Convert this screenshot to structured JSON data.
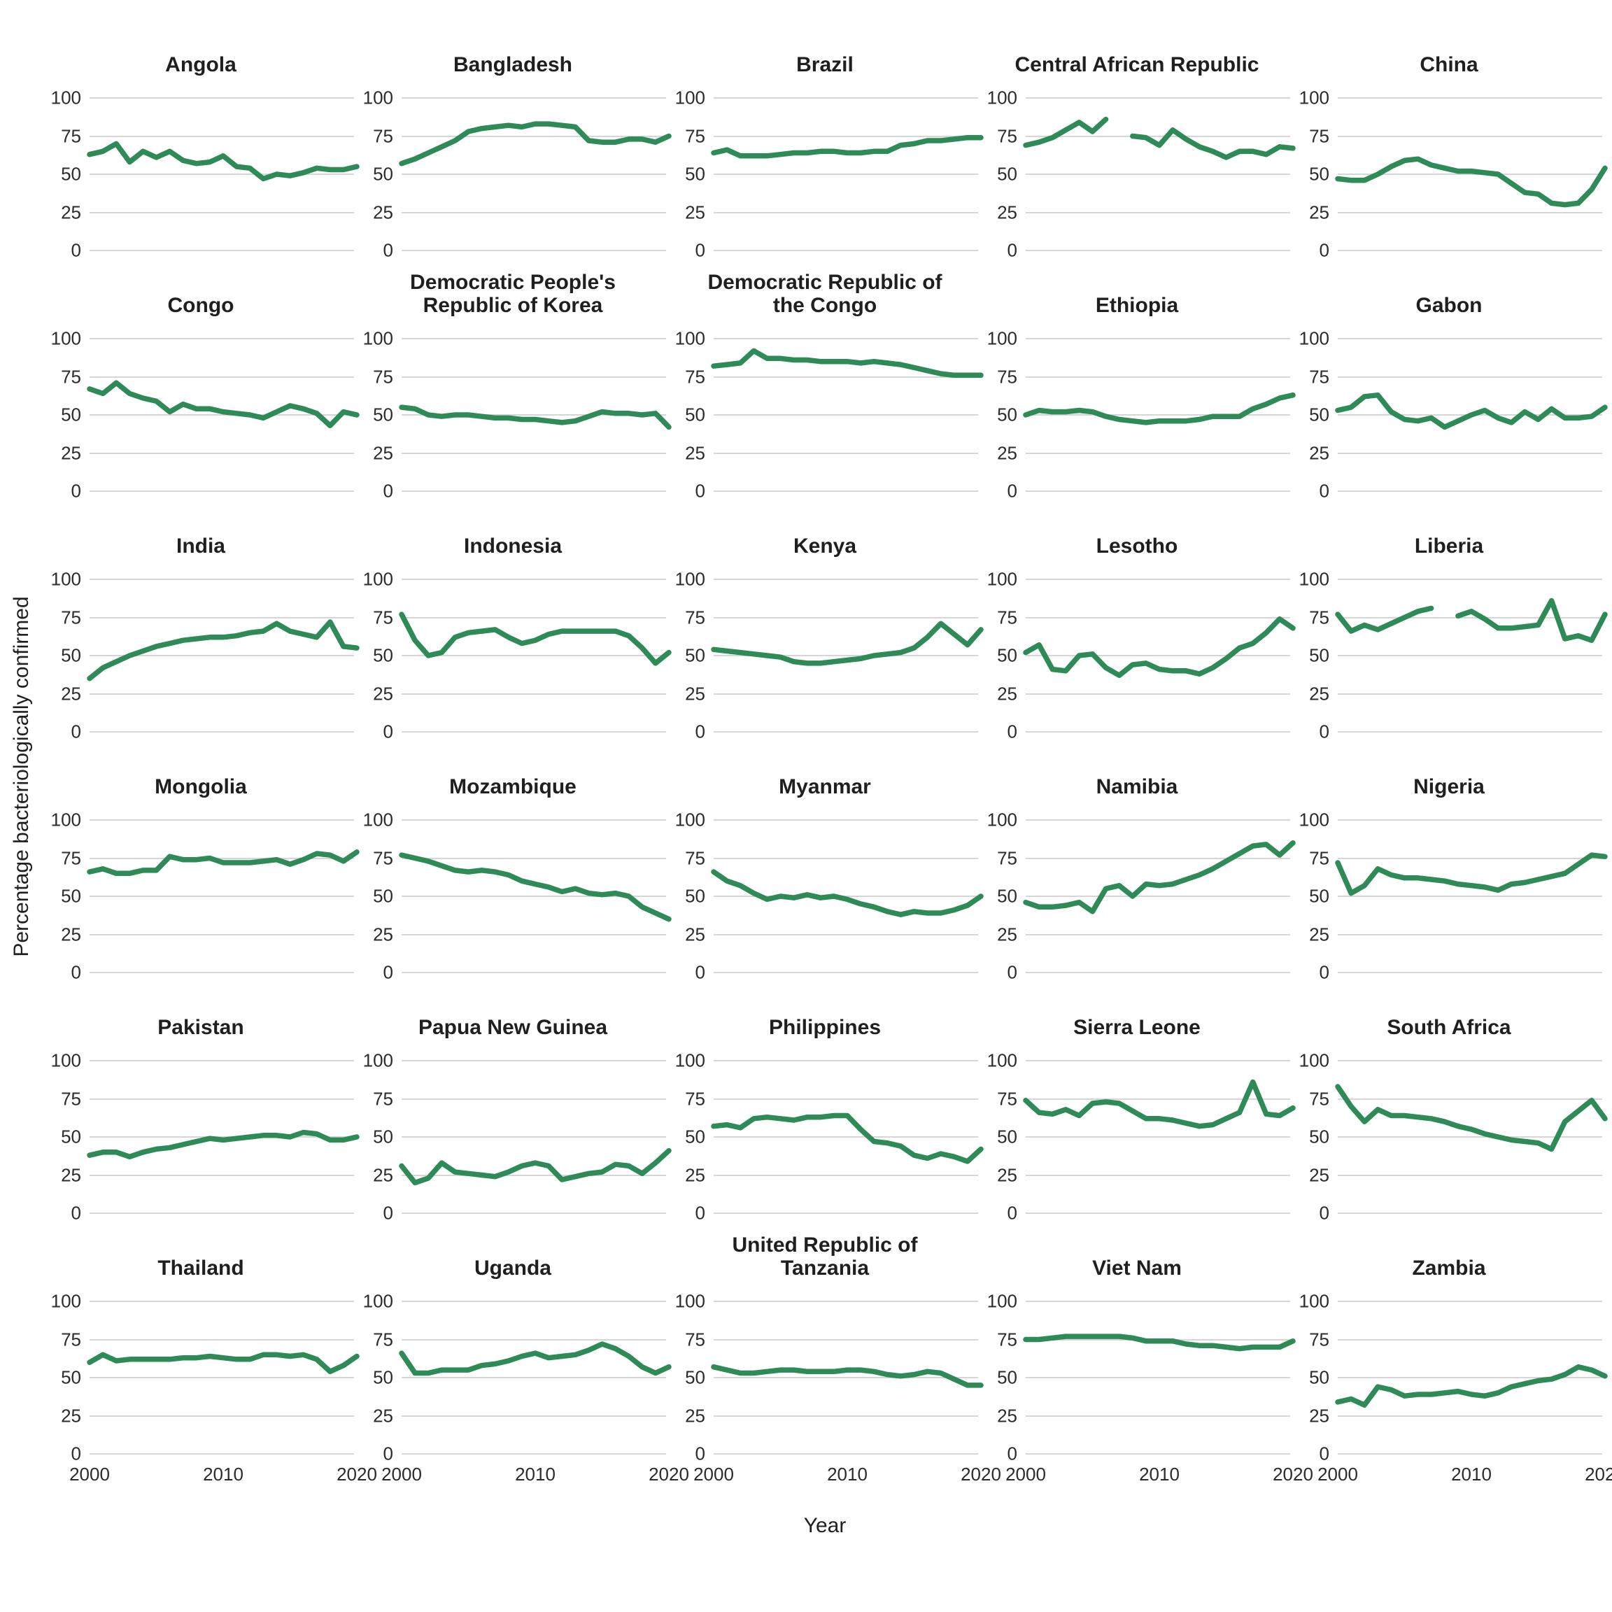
{
  "y_axis_label": "Percentage bacteriologically confirmed",
  "x_axis_label": "Year",
  "style": {
    "line_color": "#2e8b57",
    "grid_color": "#d6d6d6",
    "tick_label_color": "#2c2c2c",
    "title_color": "#1f1f1f",
    "background": "#ffffff"
  },
  "chart_data": {
    "type": "line",
    "title": "",
    "xlabel": "Year",
    "ylabel": "Percentage bacteriologically confirmed",
    "x": [
      2000,
      2001,
      2002,
      2003,
      2004,
      2005,
      2006,
      2007,
      2008,
      2009,
      2010,
      2011,
      2012,
      2013,
      2014,
      2015,
      2016,
      2017,
      2018,
      2019,
      2020
    ],
    "x_ticks": [
      2000,
      2010,
      2020
    ],
    "y_ticks": [
      0,
      25,
      50,
      75,
      100
    ],
    "y_range": [
      0,
      100
    ],
    "grid": "horizontal gridlines at y ticks only",
    "legend": "none",
    "layout": "facet grid 6 rows x 5 columns, x tick labels on bottom row only, y tick labels on every panel",
    "facets": [
      {
        "title": "Angola",
        "values": [
          63,
          65,
          70,
          58,
          65,
          61,
          65,
          59,
          57,
          58,
          62,
          55,
          54,
          47,
          50,
          49,
          51,
          54,
          53,
          53,
          55
        ]
      },
      {
        "title": "Bangladesh",
        "values": [
          57,
          60,
          64,
          68,
          72,
          78,
          80,
          81,
          82,
          81,
          83,
          83,
          82,
          81,
          72,
          71,
          71,
          73,
          73,
          71,
          75
        ]
      },
      {
        "title": "Brazil",
        "values": [
          64,
          66,
          62,
          62,
          62,
          63,
          64,
          64,
          65,
          65,
          64,
          64,
          65,
          65,
          69,
          70,
          72,
          72,
          73,
          74,
          74
        ]
      },
      {
        "title": "Central African\nRepublic",
        "values": [
          69,
          71,
          74,
          79,
          84,
          78,
          86,
          null,
          75,
          74,
          69,
          79,
          73,
          68,
          65,
          61,
          65,
          65,
          63,
          68,
          67
        ]
      },
      {
        "title": "China",
        "values": [
          47,
          46,
          46,
          50,
          55,
          59,
          60,
          56,
          54,
          52,
          52,
          51,
          50,
          44,
          38,
          37,
          31,
          30,
          31,
          40,
          54
        ]
      },
      {
        "title": "Congo",
        "values": [
          67,
          64,
          71,
          64,
          61,
          59,
          52,
          57,
          54,
          54,
          52,
          51,
          50,
          48,
          52,
          56,
          54,
          51,
          43,
          52,
          50
        ]
      },
      {
        "title": "Democratic People's\nRepublic of Korea",
        "values": [
          55,
          54,
          50,
          49,
          50,
          50,
          49,
          48,
          48,
          47,
          47,
          46,
          45,
          46,
          49,
          52,
          51,
          51,
          50,
          51,
          42
        ]
      },
      {
        "title": "Democratic Republic\nof the Congo",
        "values": [
          82,
          83,
          84,
          92,
          87,
          87,
          86,
          86,
          85,
          85,
          85,
          84,
          85,
          84,
          83,
          81,
          79,
          77,
          76,
          76,
          76
        ]
      },
      {
        "title": "Ethiopia",
        "values": [
          50,
          53,
          52,
          52,
          53,
          52,
          49,
          47,
          46,
          45,
          46,
          46,
          46,
          47,
          49,
          49,
          49,
          54,
          57,
          61,
          63
        ]
      },
      {
        "title": "Gabon",
        "values": [
          53,
          55,
          62,
          63,
          52,
          47,
          46,
          48,
          42,
          46,
          50,
          53,
          48,
          45,
          52,
          47,
          54,
          48,
          48,
          49,
          55
        ]
      },
      {
        "title": "India",
        "values": [
          35,
          42,
          46,
          50,
          53,
          56,
          58,
          60,
          61,
          62,
          62,
          63,
          65,
          66,
          71,
          66,
          64,
          62,
          72,
          56,
          55
        ]
      },
      {
        "title": "Indonesia",
        "values": [
          77,
          60,
          50,
          52,
          62,
          65,
          66,
          67,
          62,
          58,
          60,
          64,
          66,
          66,
          66,
          66,
          66,
          63,
          55,
          45,
          52
        ]
      },
      {
        "title": "Kenya",
        "values": [
          54,
          53,
          52,
          51,
          50,
          49,
          46,
          45,
          45,
          46,
          47,
          48,
          50,
          51,
          52,
          55,
          62,
          71,
          64,
          57,
          67
        ]
      },
      {
        "title": "Lesotho",
        "values": [
          52,
          57,
          41,
          40,
          50,
          51,
          42,
          37,
          44,
          45,
          41,
          40,
          40,
          38,
          42,
          48,
          55,
          58,
          65,
          74,
          68
        ]
      },
      {
        "title": "Liberia",
        "values": [
          77,
          66,
          70,
          67,
          71,
          75,
          79,
          81,
          null,
          76,
          79,
          74,
          68,
          68,
          69,
          70,
          86,
          61,
          63,
          60,
          77
        ]
      },
      {
        "title": "Mongolia",
        "values": [
          66,
          68,
          65,
          65,
          67,
          67,
          76,
          74,
          74,
          75,
          72,
          72,
          72,
          73,
          74,
          71,
          74,
          78,
          77,
          73,
          79
        ]
      },
      {
        "title": "Mozambique",
        "values": [
          77,
          75,
          73,
          70,
          67,
          66,
          67,
          66,
          64,
          60,
          58,
          56,
          53,
          55,
          52,
          51,
          52,
          50,
          43,
          39,
          35
        ]
      },
      {
        "title": "Myanmar",
        "values": [
          66,
          60,
          57,
          52,
          48,
          50,
          49,
          51,
          49,
          50,
          48,
          45,
          43,
          40,
          38,
          40,
          39,
          39,
          41,
          44,
          50
        ]
      },
      {
        "title": "Namibia",
        "values": [
          46,
          43,
          43,
          44,
          46,
          40,
          55,
          57,
          50,
          58,
          57,
          58,
          61,
          64,
          68,
          73,
          78,
          83,
          84,
          77,
          85
        ]
      },
      {
        "title": "Nigeria",
        "values": [
          72,
          52,
          57,
          68,
          64,
          62,
          62,
          61,
          60,
          58,
          57,
          56,
          54,
          58,
          59,
          61,
          63,
          65,
          71,
          77,
          76
        ]
      },
      {
        "title": "Pakistan",
        "values": [
          38,
          40,
          40,
          37,
          40,
          42,
          43,
          45,
          47,
          49,
          48,
          49,
          50,
          51,
          51,
          50,
          53,
          52,
          48,
          48,
          50
        ]
      },
      {
        "title": "Papua New Guinea",
        "values": [
          31,
          20,
          23,
          33,
          27,
          26,
          25,
          24,
          27,
          31,
          33,
          31,
          22,
          24,
          26,
          27,
          32,
          31,
          26,
          33,
          41
        ]
      },
      {
        "title": "Philippines",
        "values": [
          57,
          58,
          56,
          62,
          63,
          62,
          61,
          63,
          63,
          64,
          64,
          55,
          47,
          46,
          44,
          38,
          36,
          39,
          37,
          34,
          42
        ]
      },
      {
        "title": "Sierra Leone",
        "values": [
          74,
          66,
          65,
          68,
          64,
          72,
          73,
          72,
          67,
          62,
          62,
          61,
          59,
          57,
          58,
          62,
          66,
          86,
          65,
          64,
          69
        ]
      },
      {
        "title": "South Africa",
        "values": [
          83,
          70,
          60,
          68,
          64,
          64,
          63,
          62,
          60,
          57,
          55,
          52,
          50,
          48,
          47,
          46,
          42,
          60,
          67,
          74,
          62
        ]
      },
      {
        "title": "Thailand",
        "values": [
          60,
          65,
          61,
          62,
          62,
          62,
          62,
          63,
          63,
          64,
          63,
          62,
          62,
          65,
          65,
          64,
          65,
          62,
          54,
          58,
          64
        ]
      },
      {
        "title": "Uganda",
        "values": [
          66,
          53,
          53,
          55,
          55,
          55,
          58,
          59,
          61,
          64,
          66,
          63,
          64,
          65,
          68,
          72,
          69,
          64,
          57,
          53,
          57
        ]
      },
      {
        "title": "United Republic of\nTanzania",
        "values": [
          57,
          55,
          53,
          53,
          54,
          55,
          55,
          54,
          54,
          54,
          55,
          55,
          54,
          52,
          51,
          52,
          54,
          53,
          49,
          45,
          45
        ]
      },
      {
        "title": "Viet Nam",
        "values": [
          75,
          75,
          76,
          77,
          77,
          77,
          77,
          77,
          76,
          74,
          74,
          74,
          72,
          71,
          71,
          70,
          69,
          70,
          70,
          70,
          74
        ]
      },
      {
        "title": "Zambia",
        "values": [
          34,
          36,
          32,
          44,
          42,
          38,
          39,
          39,
          40,
          41,
          39,
          38,
          40,
          44,
          46,
          48,
          49,
          52,
          57,
          55,
          51
        ]
      }
    ]
  }
}
